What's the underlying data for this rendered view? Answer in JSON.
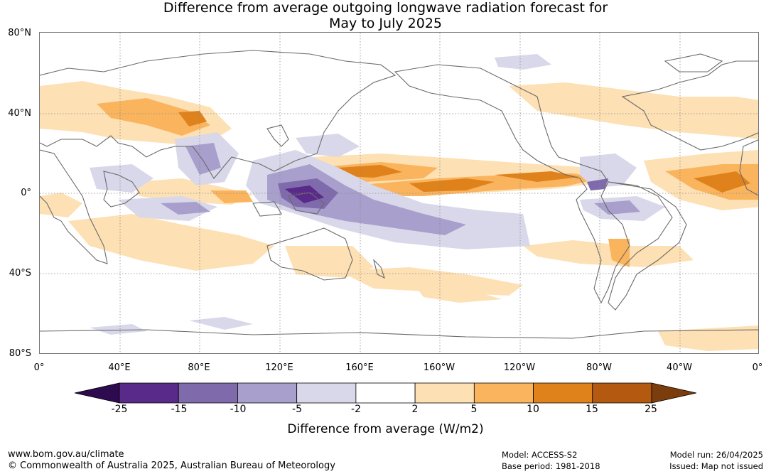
{
  "title_line1": "Difference from average outgoing longwave radiation forecast for",
  "title_line2": "May to July 2025",
  "lat_labels": [
    "80°N",
    "40°N",
    "0°",
    "40°S",
    "80°S"
  ],
  "lon_labels": [
    "0°",
    "40°E",
    "80°E",
    "120°E",
    "160°E",
    "160°W",
    "120°W",
    "80°W",
    "40°W",
    "0°"
  ],
  "colorbar": {
    "ticks": [
      "-25",
      "-15",
      "-10",
      "-5",
      "-2",
      "2",
      "5",
      "10",
      "15",
      "25"
    ],
    "colors": [
      "#2e0a4e",
      "#5a2a8a",
      "#7f6aac",
      "#a99fcc",
      "#d8d8ea",
      "#ffffff",
      "#fde0b3",
      "#fab45e",
      "#e0821c",
      "#b45a10",
      "#7c3d0c"
    ],
    "label": "Difference from average (W/m2)"
  },
  "footer": {
    "website": "www.bom.gov.au/climate",
    "copyright": "© Commonwealth of Australia 2025, Australian Bureau of Meteorology",
    "model": "Model: ACCESS-S2",
    "base_period": "Base period: 1981-2018",
    "model_run": "Model run: 26/04/2025",
    "issued": "Issued: Map not issued"
  }
}
